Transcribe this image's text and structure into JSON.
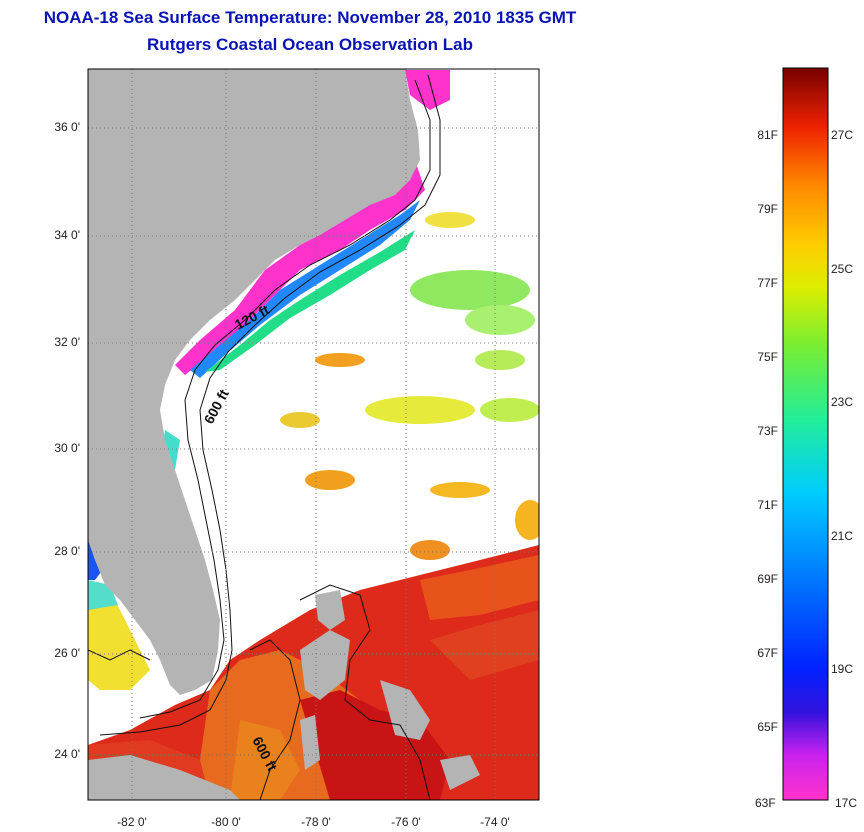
{
  "header": {
    "title": "NOAA-18 Sea Surface Temperature:  November 28, 2010 1835 GMT",
    "subtitle": "Rutgers Coastal Ocean Observation Lab"
  },
  "axes": {
    "lat_labels": [
      "36 0'",
      "34 0'",
      "32 0'",
      "30 0'",
      "28 0'",
      "26 0'",
      "24 0'"
    ],
    "lon_labels": [
      "-82 0'",
      "-80 0'",
      "-78 0'",
      "-76 0'",
      "-74 0'"
    ]
  },
  "contours": {
    "label_120": "120 ft",
    "label_600_north": "600 ft",
    "label_600_south": "600 ft"
  },
  "colorbar": {
    "f_labels": [
      "81F",
      "79F",
      "77F",
      "75F",
      "73F",
      "71F",
      "69F",
      "67F",
      "65F",
      "63F"
    ],
    "c_labels": [
      "27C",
      "25C",
      "23C",
      "21C",
      "19C",
      "17C"
    ]
  },
  "colors": {
    "title": "#0a14b4",
    "land": "#b4b4b4",
    "water_nodata": "#ffffff"
  }
}
